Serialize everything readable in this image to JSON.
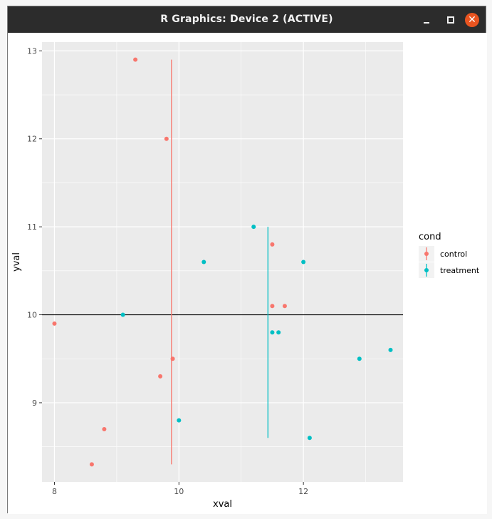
{
  "window": {
    "title": "R Graphics: Device 2 (ACTIVE)",
    "controls": [
      "minimize-icon",
      "maximize-icon",
      "close-icon"
    ],
    "close_color": "#e95420"
  },
  "chart_data": {
    "type": "scatter",
    "xlabel": "xval",
    "ylabel": "yval",
    "xlim": [
      7.8,
      13.6
    ],
    "ylim": [
      8.1,
      13.1
    ],
    "x_ticks": [
      8,
      10,
      12
    ],
    "y_ticks": [
      9,
      10,
      11,
      12,
      13
    ],
    "hline": 10,
    "background": "#ebebeb",
    "grid": true,
    "legend": {
      "title": "cond",
      "position": "right"
    },
    "series": [
      {
        "name": "control",
        "color": "#f8766d",
        "points": [
          {
            "x": 8.0,
            "y": 9.9
          },
          {
            "x": 8.6,
            "y": 8.3
          },
          {
            "x": 8.8,
            "y": 8.7
          },
          {
            "x": 9.3,
            "y": 12.9
          },
          {
            "x": 9.7,
            "y": 9.3
          },
          {
            "x": 9.8,
            "y": 12.0
          },
          {
            "x": 9.9,
            "y": 9.5
          },
          {
            "x": 11.5,
            "y": 10.8
          },
          {
            "x": 11.5,
            "y": 10.1
          },
          {
            "x": 11.7,
            "y": 10.1
          }
        ],
        "range_line": {
          "x": 9.88,
          "ymin": 8.3,
          "ymax": 12.9
        }
      },
      {
        "name": "treatment",
        "color": "#00bfc4",
        "points": [
          {
            "x": 9.1,
            "y": 10.0
          },
          {
            "x": 10.0,
            "y": 8.8
          },
          {
            "x": 10.4,
            "y": 10.6
          },
          {
            "x": 11.2,
            "y": 11.0
          },
          {
            "x": 11.5,
            "y": 9.8
          },
          {
            "x": 11.6,
            "y": 9.8
          },
          {
            "x": 12.0,
            "y": 10.6
          },
          {
            "x": 12.1,
            "y": 8.6
          },
          {
            "x": 12.9,
            "y": 9.5
          },
          {
            "x": 13.4,
            "y": 9.6
          }
        ],
        "range_line": {
          "x": 11.43,
          "ymin": 8.6,
          "ymax": 11.0
        }
      }
    ]
  }
}
